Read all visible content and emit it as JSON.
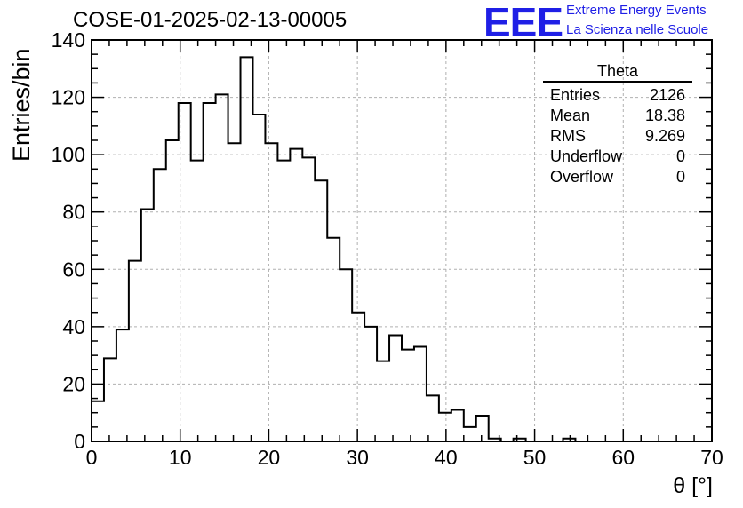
{
  "header": {
    "title": "COSE-01-2025-02-13-00005",
    "logo_text": "EEE",
    "logo_line1": "Extreme Energy Events",
    "logo_line2": "La Scienza nelle Scuole",
    "brand_color": "#1f1fe6"
  },
  "stats": {
    "name": "Theta",
    "rows": [
      {
        "label": "Entries",
        "value": "2126"
      },
      {
        "label": "Mean",
        "value": "18.38"
      },
      {
        "label": "RMS",
        "value": "9.269"
      },
      {
        "label": "Underflow",
        "value": "0"
      },
      {
        "label": "Overflow",
        "value": "0"
      }
    ]
  },
  "chart_data": {
    "type": "histogram",
    "title": "COSE-01-2025-02-13-00005",
    "xlabel": "θ [°]",
    "ylabel": "Entries/bin",
    "xlim": [
      0,
      70
    ],
    "ylim": [
      0,
      140
    ],
    "bin_width": 1.4,
    "bin_start": 0,
    "values": [
      14,
      29,
      39,
      63,
      81,
      95,
      105,
      118,
      98,
      118,
      121,
      104,
      134,
      114,
      104,
      98,
      102,
      99,
      91,
      71,
      60,
      45,
      40,
      28,
      37,
      32,
      33,
      16,
      10,
      11,
      5,
      9,
      1,
      0,
      1,
      0,
      0,
      0,
      1,
      0,
      0,
      0,
      0,
      0,
      0,
      0,
      0,
      0,
      0,
      0
    ],
    "x_ticks": [
      "0",
      "10",
      "20",
      "30",
      "40",
      "50",
      "60",
      "70"
    ],
    "y_ticks": [
      "0",
      "20",
      "40",
      "60",
      "80",
      "100",
      "120",
      "140"
    ],
    "grid": true,
    "line_color": "#000000"
  }
}
